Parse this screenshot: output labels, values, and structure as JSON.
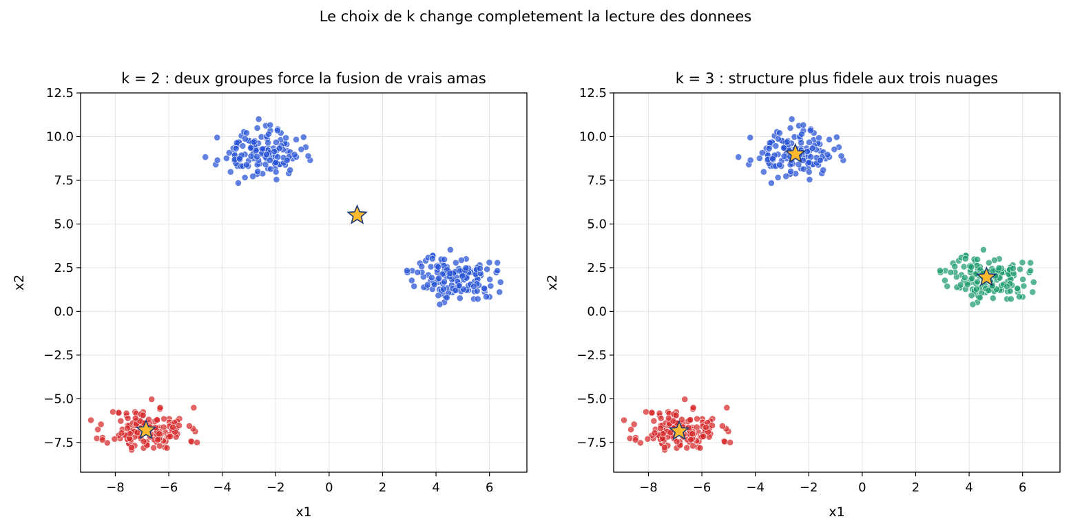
{
  "suptitle": "Le choix de k change completement la lecture des donnees",
  "colors": {
    "cluster_red": "#d62728",
    "cluster_blue": "#2450d6",
    "cluster_green": "#1a9a6c",
    "centroid_fill": "#fdb92e",
    "centroid_edge": "#1f3b73",
    "grid": "#e5e5e5"
  },
  "chart_data": [
    {
      "type": "scatter",
      "title": "k = 2 : deux groupes force la fusion de vrais amas",
      "xlabel": "x1",
      "ylabel": "x2",
      "xlim": [
        -9.3,
        7.4
      ],
      "ylim": [
        -9.2,
        12.5
      ],
      "xticks": [
        -8,
        -6,
        -4,
        -2,
        0,
        2,
        4,
        6
      ],
      "xtick_labels": [
        "−8",
        "−6",
        "−4",
        "−2",
        "0",
        "2",
        "4",
        "6"
      ],
      "yticks": [
        -7.5,
        -5.0,
        -2.5,
        0.0,
        2.5,
        5.0,
        7.5,
        10.0,
        12.5
      ],
      "ytick_labels": [
        "−7.5",
        "−5.0",
        "−2.5",
        "0.0",
        "2.5",
        "5.0",
        "7.5",
        "10.0",
        "12.5"
      ],
      "grid": true,
      "series": [
        {
          "color": "cluster_red",
          "center": [
            -6.8,
            -6.8
          ],
          "spread": [
            0.75,
            0.65
          ],
          "count": 140,
          "seed": 11
        },
        {
          "color": "cluster_blue",
          "center": [
            -2.6,
            9.0
          ],
          "spread": [
            0.75,
            0.65
          ],
          "count": 140,
          "seed": 23
        },
        {
          "color": "cluster_blue",
          "center": [
            4.7,
            1.95
          ],
          "spread": [
            0.75,
            0.65
          ],
          "count": 140,
          "seed": 37
        }
      ],
      "centroids": [
        [
          -6.85,
          -6.8
        ],
        [
          1.05,
          5.5
        ]
      ]
    },
    {
      "type": "scatter",
      "title": "k = 3 : structure plus fidele aux trois nuages",
      "xlabel": "x1",
      "ylabel": "x2",
      "xlim": [
        -9.3,
        7.4
      ],
      "ylim": [
        -9.2,
        12.5
      ],
      "xticks": [
        -8,
        -6,
        -4,
        -2,
        0,
        2,
        4,
        6
      ],
      "xtick_labels": [
        "−8",
        "−6",
        "−4",
        "−2",
        "0",
        "2",
        "4",
        "6"
      ],
      "yticks": [
        -7.5,
        -5.0,
        -2.5,
        0.0,
        2.5,
        5.0,
        7.5,
        10.0,
        12.5
      ],
      "ytick_labels": [
        "−7.5",
        "−5.0",
        "−2.5",
        "0.0",
        "2.5",
        "5.0",
        "7.5",
        "10.0",
        "12.5"
      ],
      "grid": true,
      "series": [
        {
          "color": "cluster_red",
          "center": [
            -6.8,
            -6.8
          ],
          "spread": [
            0.75,
            0.65
          ],
          "count": 140,
          "seed": 11
        },
        {
          "color": "cluster_blue",
          "center": [
            -2.6,
            9.0
          ],
          "spread": [
            0.75,
            0.65
          ],
          "count": 140,
          "seed": 23
        },
        {
          "color": "cluster_green",
          "center": [
            4.7,
            1.95
          ],
          "spread": [
            0.75,
            0.65
          ],
          "count": 140,
          "seed": 37
        }
      ],
      "centroids": [
        [
          -6.85,
          -6.85
        ],
        [
          -2.5,
          9.0
        ],
        [
          4.65,
          1.95
        ]
      ]
    }
  ]
}
